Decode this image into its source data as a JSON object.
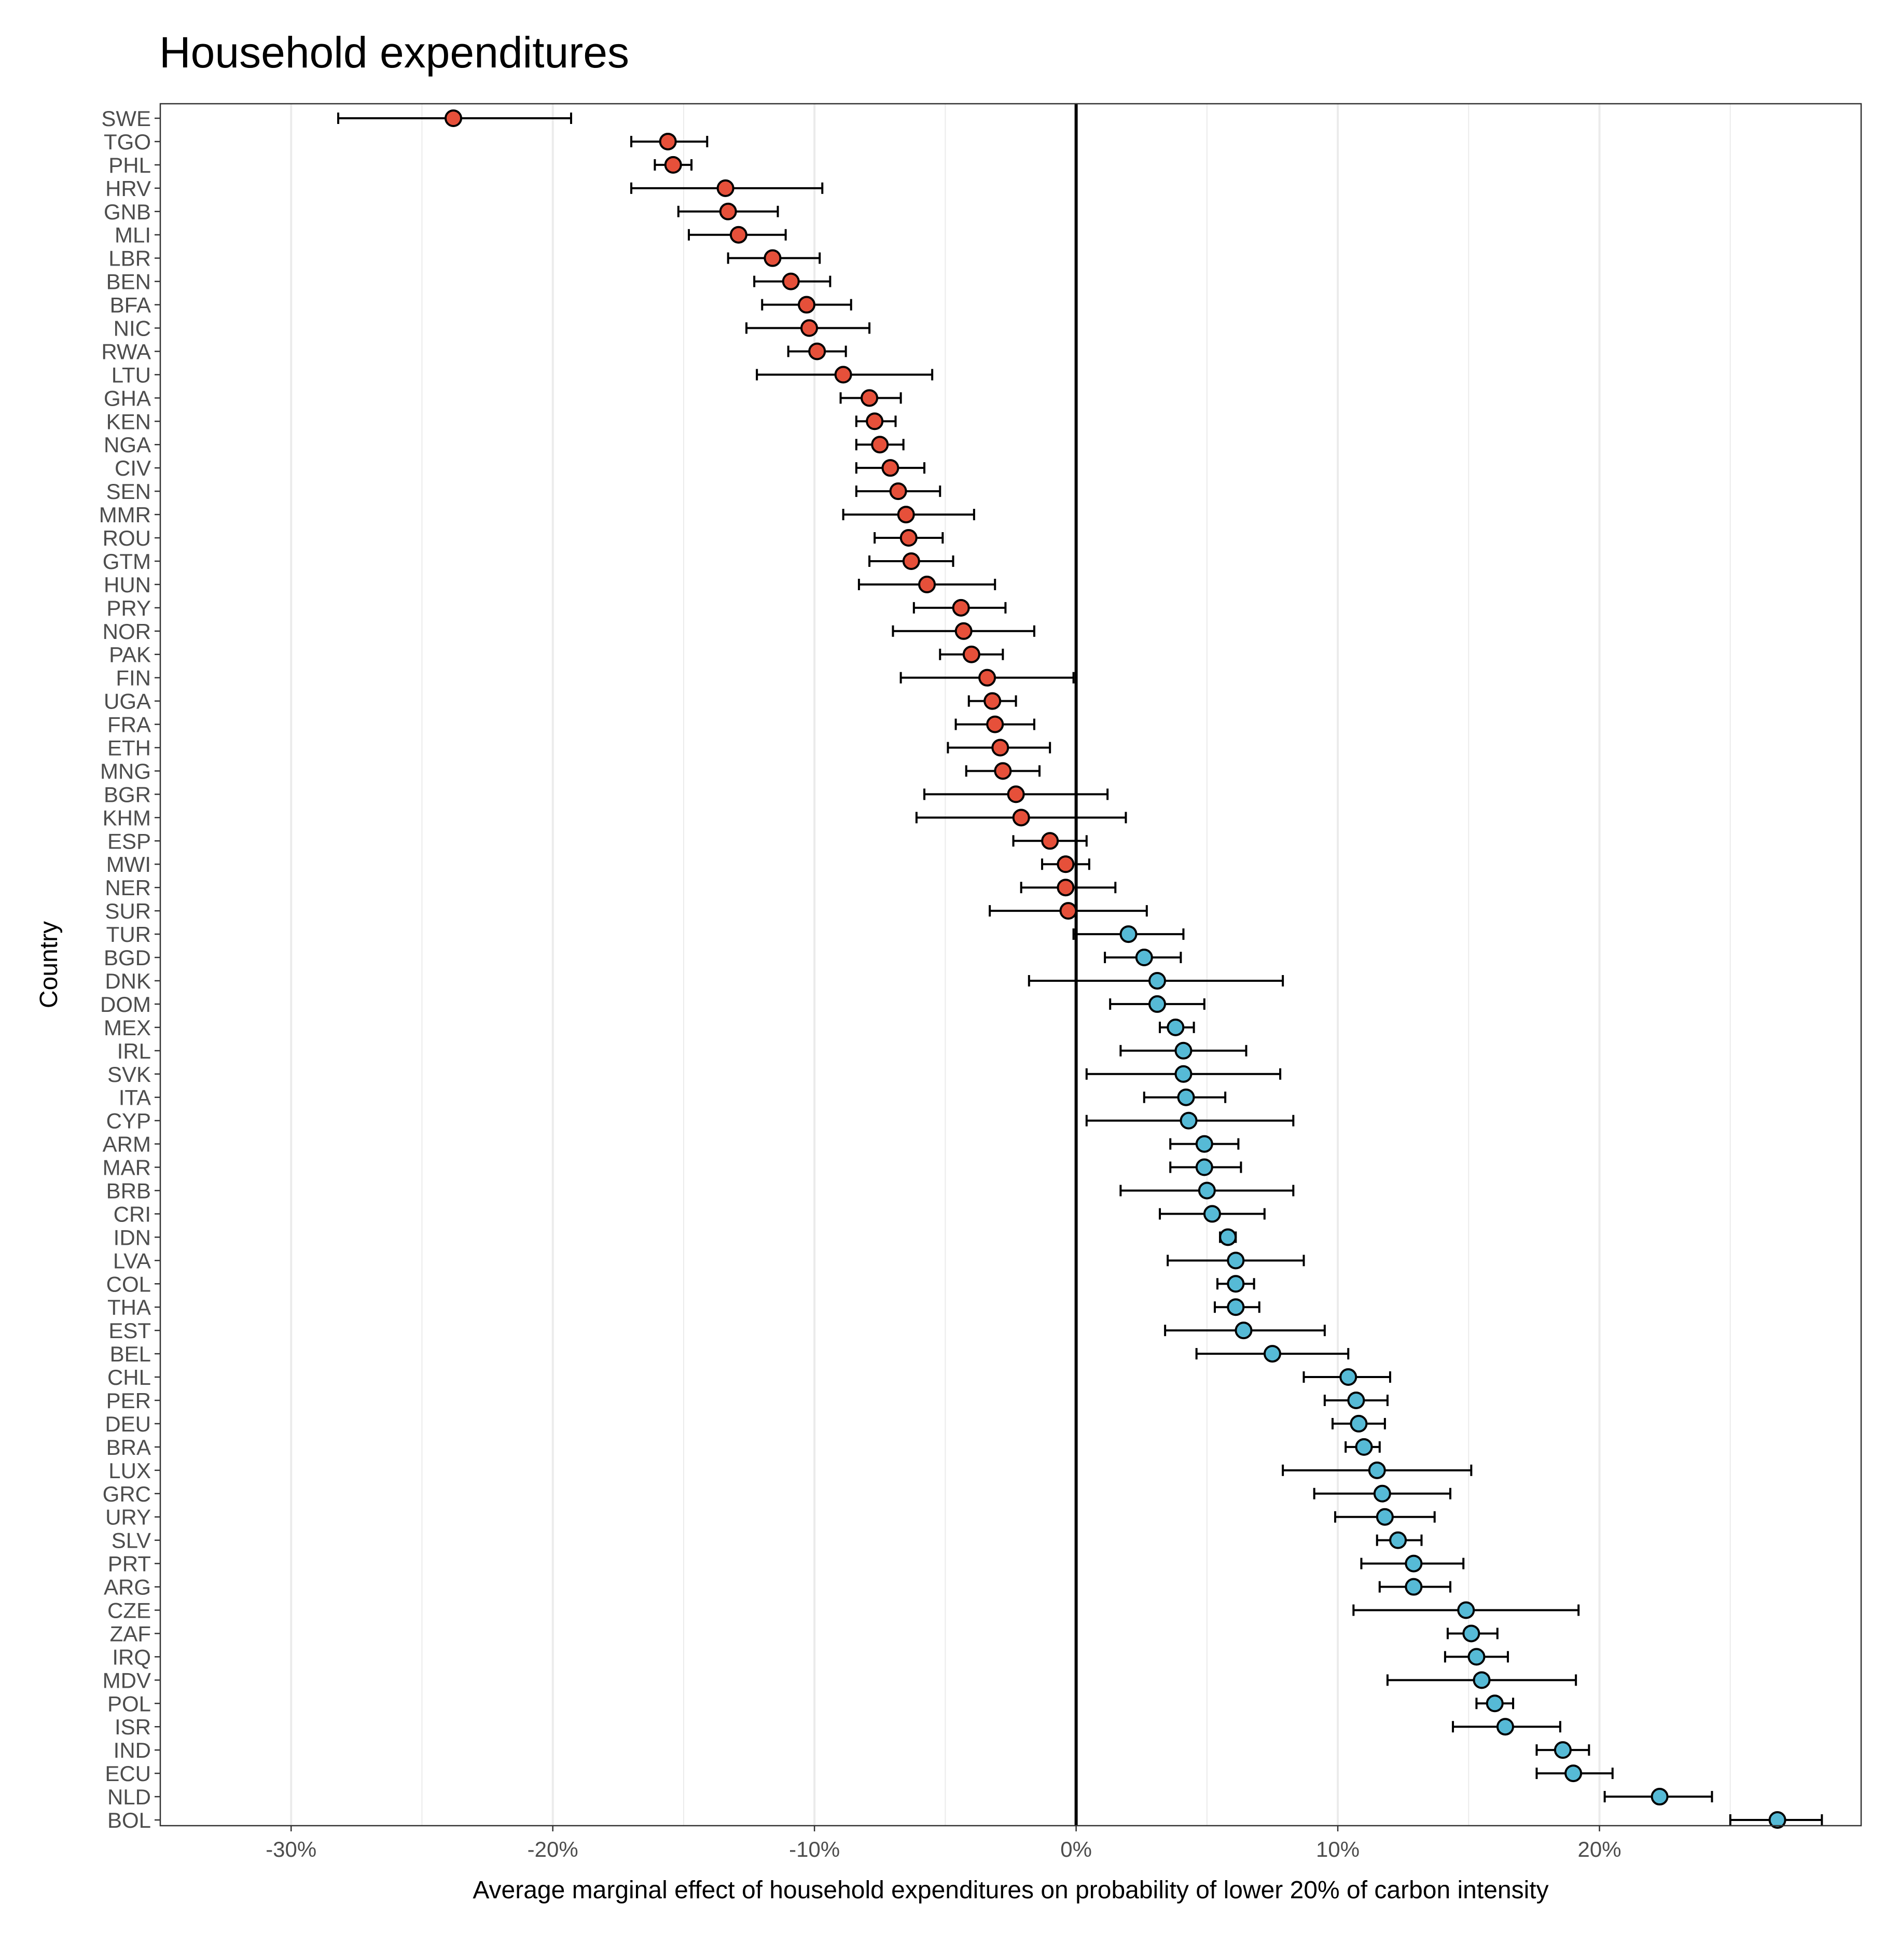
{
  "chart_data": {
    "type": "scatter",
    "title": "Household expenditures",
    "xlabel": "Average marginal effect of household expenditures on probability of lower 20% of carbon intensity",
    "ylabel": "Country",
    "xlim": [
      -35,
      30
    ],
    "x_ticks": [
      -30,
      -20,
      -10,
      0,
      10,
      20
    ],
    "x_tick_labels": [
      "-30%",
      "-20%",
      "-10%",
      "0%",
      "10%",
      "20%"
    ],
    "grid": "vertical major and minor lines",
    "legend": "none",
    "colors": {
      "negative": "#E6503A",
      "positive": "#56BAD6",
      "errorbar": "#000000",
      "zero_line": "#000000",
      "grid": "#ebebeb"
    },
    "series": [
      {
        "country": "SWE",
        "estimate": -23.8,
        "low": -28.2,
        "high": -19.3
      },
      {
        "country": "TGO",
        "estimate": -15.6,
        "low": -17.0,
        "high": -14.1
      },
      {
        "country": "PHL",
        "estimate": -15.4,
        "low": -16.1,
        "high": -14.7
      },
      {
        "country": "HRV",
        "estimate": -13.4,
        "low": -17.0,
        "high": -9.7
      },
      {
        "country": "GNB",
        "estimate": -13.3,
        "low": -15.2,
        "high": -11.4
      },
      {
        "country": "MLI",
        "estimate": -12.9,
        "low": -14.8,
        "high": -11.1
      },
      {
        "country": "LBR",
        "estimate": -11.6,
        "low": -13.3,
        "high": -9.8
      },
      {
        "country": "BEN",
        "estimate": -10.9,
        "low": -12.3,
        "high": -9.4
      },
      {
        "country": "BFA",
        "estimate": -10.3,
        "low": -12.0,
        "high": -8.6
      },
      {
        "country": "NIC",
        "estimate": -10.2,
        "low": -12.6,
        "high": -7.9
      },
      {
        "country": "RWA",
        "estimate": -9.9,
        "low": -11.0,
        "high": -8.8
      },
      {
        "country": "LTU",
        "estimate": -8.9,
        "low": -12.2,
        "high": -5.5
      },
      {
        "country": "GHA",
        "estimate": -7.9,
        "low": -9.0,
        "high": -6.7
      },
      {
        "country": "KEN",
        "estimate": -7.7,
        "low": -8.4,
        "high": -6.9
      },
      {
        "country": "NGA",
        "estimate": -7.5,
        "low": -8.4,
        "high": -6.6
      },
      {
        "country": "CIV",
        "estimate": -7.1,
        "low": -8.4,
        "high": -5.8
      },
      {
        "country": "SEN",
        "estimate": -6.8,
        "low": -8.4,
        "high": -5.2
      },
      {
        "country": "MMR",
        "estimate": -6.5,
        "low": -8.9,
        "high": -3.9
      },
      {
        "country": "ROU",
        "estimate": -6.4,
        "low": -7.7,
        "high": -5.1
      },
      {
        "country": "GTM",
        "estimate": -6.3,
        "low": -7.9,
        "high": -4.7
      },
      {
        "country": "HUN",
        "estimate": -5.7,
        "low": -8.3,
        "high": -3.1
      },
      {
        "country": "PRY",
        "estimate": -4.4,
        "low": -6.2,
        "high": -2.7
      },
      {
        "country": "NOR",
        "estimate": -4.3,
        "low": -7.0,
        "high": -1.6
      },
      {
        "country": "PAK",
        "estimate": -4.0,
        "low": -5.2,
        "high": -2.8
      },
      {
        "country": "FIN",
        "estimate": -3.4,
        "low": -6.7,
        "high": -0.1
      },
      {
        "country": "UGA",
        "estimate": -3.2,
        "low": -4.1,
        "high": -2.3
      },
      {
        "country": "FRA",
        "estimate": -3.1,
        "low": -4.6,
        "high": -1.6
      },
      {
        "country": "ETH",
        "estimate": -2.9,
        "low": -4.9,
        "high": -1.0
      },
      {
        "country": "MNG",
        "estimate": -2.8,
        "low": -4.2,
        "high": -1.4
      },
      {
        "country": "BGR",
        "estimate": -2.3,
        "low": -5.8,
        "high": 1.2
      },
      {
        "country": "KHM",
        "estimate": -2.1,
        "low": -6.1,
        "high": 1.9
      },
      {
        "country": "ESP",
        "estimate": -1.0,
        "low": -2.4,
        "high": 0.4
      },
      {
        "country": "MWI",
        "estimate": -0.4,
        "low": -1.3,
        "high": 0.5
      },
      {
        "country": "NER",
        "estimate": -0.4,
        "low": -2.1,
        "high": 1.5
      },
      {
        "country": "SUR",
        "estimate": -0.3,
        "low": -3.3,
        "high": 2.7
      },
      {
        "country": "TUR",
        "estimate": 2.0,
        "low": -0.1,
        "high": 4.1
      },
      {
        "country": "BGD",
        "estimate": 2.6,
        "low": 1.1,
        "high": 4.0
      },
      {
        "country": "DNK",
        "estimate": 3.1,
        "low": -1.8,
        "high": 7.9
      },
      {
        "country": "DOM",
        "estimate": 3.1,
        "low": 1.3,
        "high": 4.9
      },
      {
        "country": "MEX",
        "estimate": 3.8,
        "low": 3.2,
        "high": 4.5
      },
      {
        "country": "IRL",
        "estimate": 4.1,
        "low": 1.7,
        "high": 6.5
      },
      {
        "country": "SVK",
        "estimate": 4.1,
        "low": 0.4,
        "high": 7.8
      },
      {
        "country": "ITA",
        "estimate": 4.2,
        "low": 2.6,
        "high": 5.7
      },
      {
        "country": "CYP",
        "estimate": 4.3,
        "low": 0.4,
        "high": 8.3
      },
      {
        "country": "ARM",
        "estimate": 4.9,
        "low": 3.6,
        "high": 6.2
      },
      {
        "country": "MAR",
        "estimate": 4.9,
        "low": 3.6,
        "high": 6.3
      },
      {
        "country": "BRB",
        "estimate": 5.0,
        "low": 1.7,
        "high": 8.3
      },
      {
        "country": "CRI",
        "estimate": 5.2,
        "low": 3.2,
        "high": 7.2
      },
      {
        "country": "IDN",
        "estimate": 5.8,
        "low": 5.5,
        "high": 6.1
      },
      {
        "country": "LVA",
        "estimate": 6.1,
        "low": 3.5,
        "high": 8.7
      },
      {
        "country": "COL",
        "estimate": 6.1,
        "low": 5.4,
        "high": 6.8
      },
      {
        "country": "THA",
        "estimate": 6.1,
        "low": 5.3,
        "high": 7.0
      },
      {
        "country": "EST",
        "estimate": 6.4,
        "low": 3.4,
        "high": 9.5
      },
      {
        "country": "BEL",
        "estimate": 7.5,
        "low": 4.6,
        "high": 10.4
      },
      {
        "country": "CHL",
        "estimate": 10.4,
        "low": 8.7,
        "high": 12.0
      },
      {
        "country": "PER",
        "estimate": 10.7,
        "low": 9.5,
        "high": 11.9
      },
      {
        "country": "DEU",
        "estimate": 10.8,
        "low": 9.8,
        "high": 11.8
      },
      {
        "country": "BRA",
        "estimate": 11.0,
        "low": 10.3,
        "high": 11.6
      },
      {
        "country": "LUX",
        "estimate": 11.5,
        "low": 7.9,
        "high": 15.1
      },
      {
        "country": "GRC",
        "estimate": 11.7,
        "low": 9.1,
        "high": 14.3
      },
      {
        "country": "URY",
        "estimate": 11.8,
        "low": 9.9,
        "high": 13.7
      },
      {
        "country": "SLV",
        "estimate": 12.3,
        "low": 11.5,
        "high": 13.2
      },
      {
        "country": "PRT",
        "estimate": 12.9,
        "low": 10.9,
        "high": 14.8
      },
      {
        "country": "ARG",
        "estimate": 12.9,
        "low": 11.6,
        "high": 14.3
      },
      {
        "country": "CZE",
        "estimate": 14.9,
        "low": 10.6,
        "high": 19.2
      },
      {
        "country": "ZAF",
        "estimate": 15.1,
        "low": 14.2,
        "high": 16.1
      },
      {
        "country": "IRQ",
        "estimate": 15.3,
        "low": 14.1,
        "high": 16.5
      },
      {
        "country": "MDV",
        "estimate": 15.5,
        "low": 11.9,
        "high": 19.1
      },
      {
        "country": "POL",
        "estimate": 16.0,
        "low": 15.3,
        "high": 16.7
      },
      {
        "country": "ISR",
        "estimate": 16.4,
        "low": 14.4,
        "high": 18.5
      },
      {
        "country": "IND",
        "estimate": 18.6,
        "low": 17.6,
        "high": 19.6
      },
      {
        "country": "ECU",
        "estimate": 19.0,
        "low": 17.6,
        "high": 20.5
      },
      {
        "country": "NLD",
        "estimate": 22.3,
        "low": 20.2,
        "high": 24.3
      },
      {
        "country": "BOL",
        "estimate": 26.8,
        "low": 25.0,
        "high": 28.5
      }
    ]
  }
}
